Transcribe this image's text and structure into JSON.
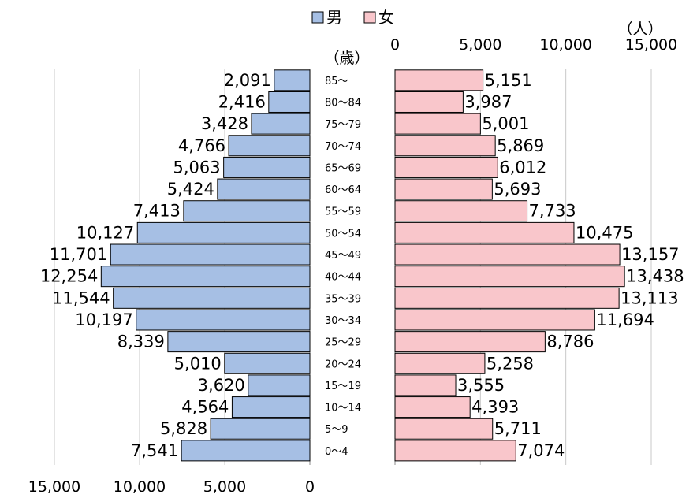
{
  "chart_data": {
    "type": "bar",
    "orientation": "horizontal-population-pyramid",
    "legend": {
      "placement": "top-center",
      "items": [
        {
          "name": "男",
          "color": "#a6bfe4"
        },
        {
          "name": "女",
          "color": "#f9c6cb"
        }
      ]
    },
    "category_label": "（歳）",
    "unit_label": "（人）",
    "categories": [
      "85～",
      "80～84",
      "75～79",
      "70～74",
      "65～69",
      "60～64",
      "55～59",
      "50～54",
      "45～49",
      "40～44",
      "35～39",
      "30～34",
      "25～29",
      "20～24",
      "15～19",
      "10～14",
      "5～9",
      "0～4"
    ],
    "series": [
      {
        "name": "男",
        "values": [
          2091,
          2416,
          3428,
          4766,
          5063,
          5424,
          7413,
          10127,
          11701,
          12254,
          11544,
          10197,
          8339,
          5010,
          3620,
          4564,
          5828,
          7541
        ],
        "labels": [
          "2,091",
          "2,416",
          "3,428",
          "4,766",
          "5,063",
          "5,424",
          "7,413",
          "10,127",
          "11,701",
          "12,254",
          "11,544",
          "10,197",
          "8,339",
          "5,010",
          "3,620",
          "4,564",
          "5,828",
          "7,541"
        ]
      },
      {
        "name": "女",
        "values": [
          5151,
          3987,
          5001,
          5869,
          6012,
          5693,
          7733,
          10475,
          13157,
          13438,
          13113,
          11694,
          8786,
          5258,
          3555,
          4393,
          5711,
          7074
        ],
        "labels": [
          "5,151",
          "3,987",
          "5,001",
          "5,869",
          "6,012",
          "5,693",
          "7,733",
          "10,475",
          "13,157",
          "13,438",
          "13,113",
          "11,694",
          "8,786",
          "5,258",
          "3,555",
          "4,393",
          "5,711",
          "7,074"
        ]
      }
    ],
    "male_axis": {
      "range": [
        0,
        15000
      ],
      "direction": "reversed",
      "position": "bottom",
      "ticks": [
        15000,
        10000,
        5000,
        0
      ],
      "tick_labels": [
        "15,000",
        "10,000",
        "5,000",
        "0"
      ]
    },
    "female_axis": {
      "range": [
        0,
        15000
      ],
      "position": "top",
      "ticks": [
        0,
        5000,
        10000,
        15000
      ],
      "tick_labels": [
        "0",
        "5,000",
        "10,000",
        "15,000"
      ]
    },
    "grid": true,
    "colors": {
      "male": "#a6bfe4",
      "female": "#f9c6cb",
      "grid": "#c8c8c8"
    }
  }
}
